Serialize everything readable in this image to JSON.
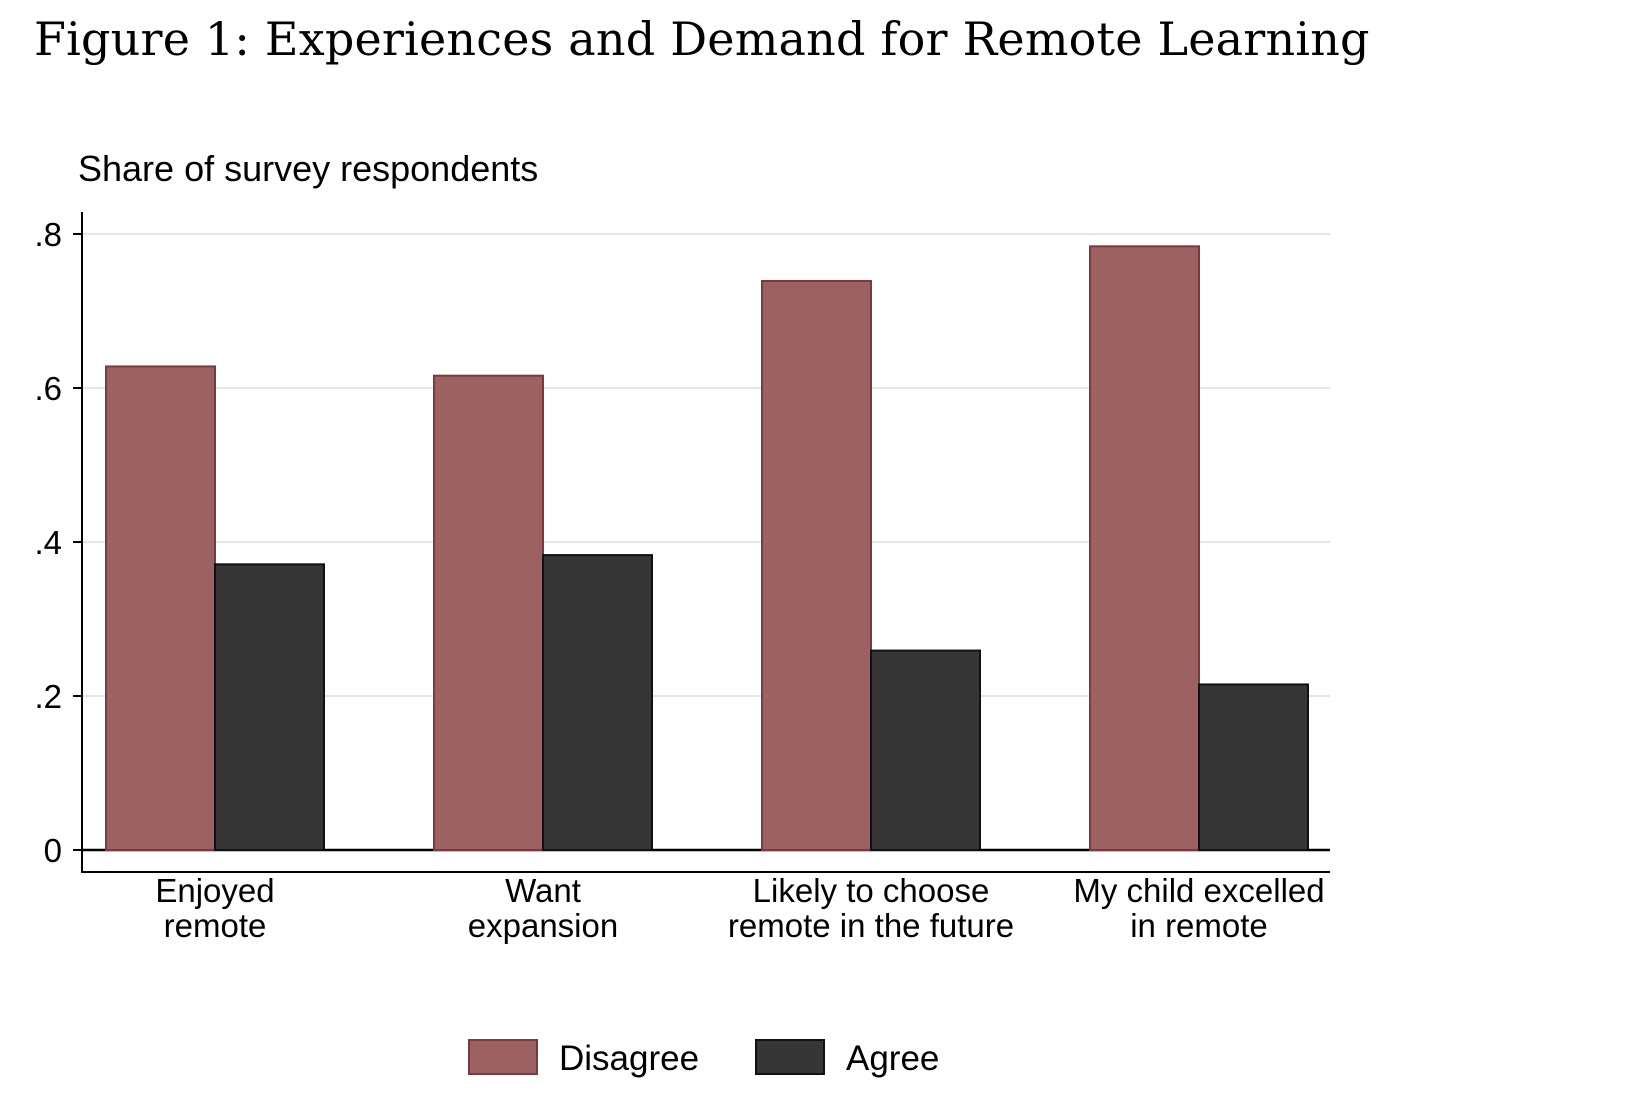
{
  "figure_title": "Figure 1: Experiences and Demand for Remote Learning",
  "chart_data": {
    "type": "bar",
    "title": "",
    "ylabel": "Share of survey respondents",
    "xlabel": "",
    "ylim": [
      0,
      0.8
    ],
    "yticks": [
      {
        "value": 0,
        "label": "0"
      },
      {
        "value": 0.2,
        "label": ".2"
      },
      {
        "value": 0.4,
        "label": ".4"
      },
      {
        "value": 0.6,
        "label": ".6"
      },
      {
        "value": 0.8,
        "label": ".8"
      }
    ],
    "grid": true,
    "categories": [
      [
        "Enjoyed",
        "remote"
      ],
      [
        "Want",
        "expansion"
      ],
      [
        "Likely to choose",
        "remote in the future"
      ],
      [
        "My child excelled",
        "in remote"
      ]
    ],
    "series": [
      {
        "name": "Disagree",
        "color": "#9c6262",
        "edge": "#7a3a3f",
        "values": [
          0.628,
          0.616,
          0.739,
          0.784
        ]
      },
      {
        "name": "Agree",
        "color": "#363636",
        "edge": "#111111",
        "values": [
          0.371,
          0.383,
          0.259,
          0.215
        ]
      }
    ],
    "legend": {
      "position": "bottom"
    }
  }
}
